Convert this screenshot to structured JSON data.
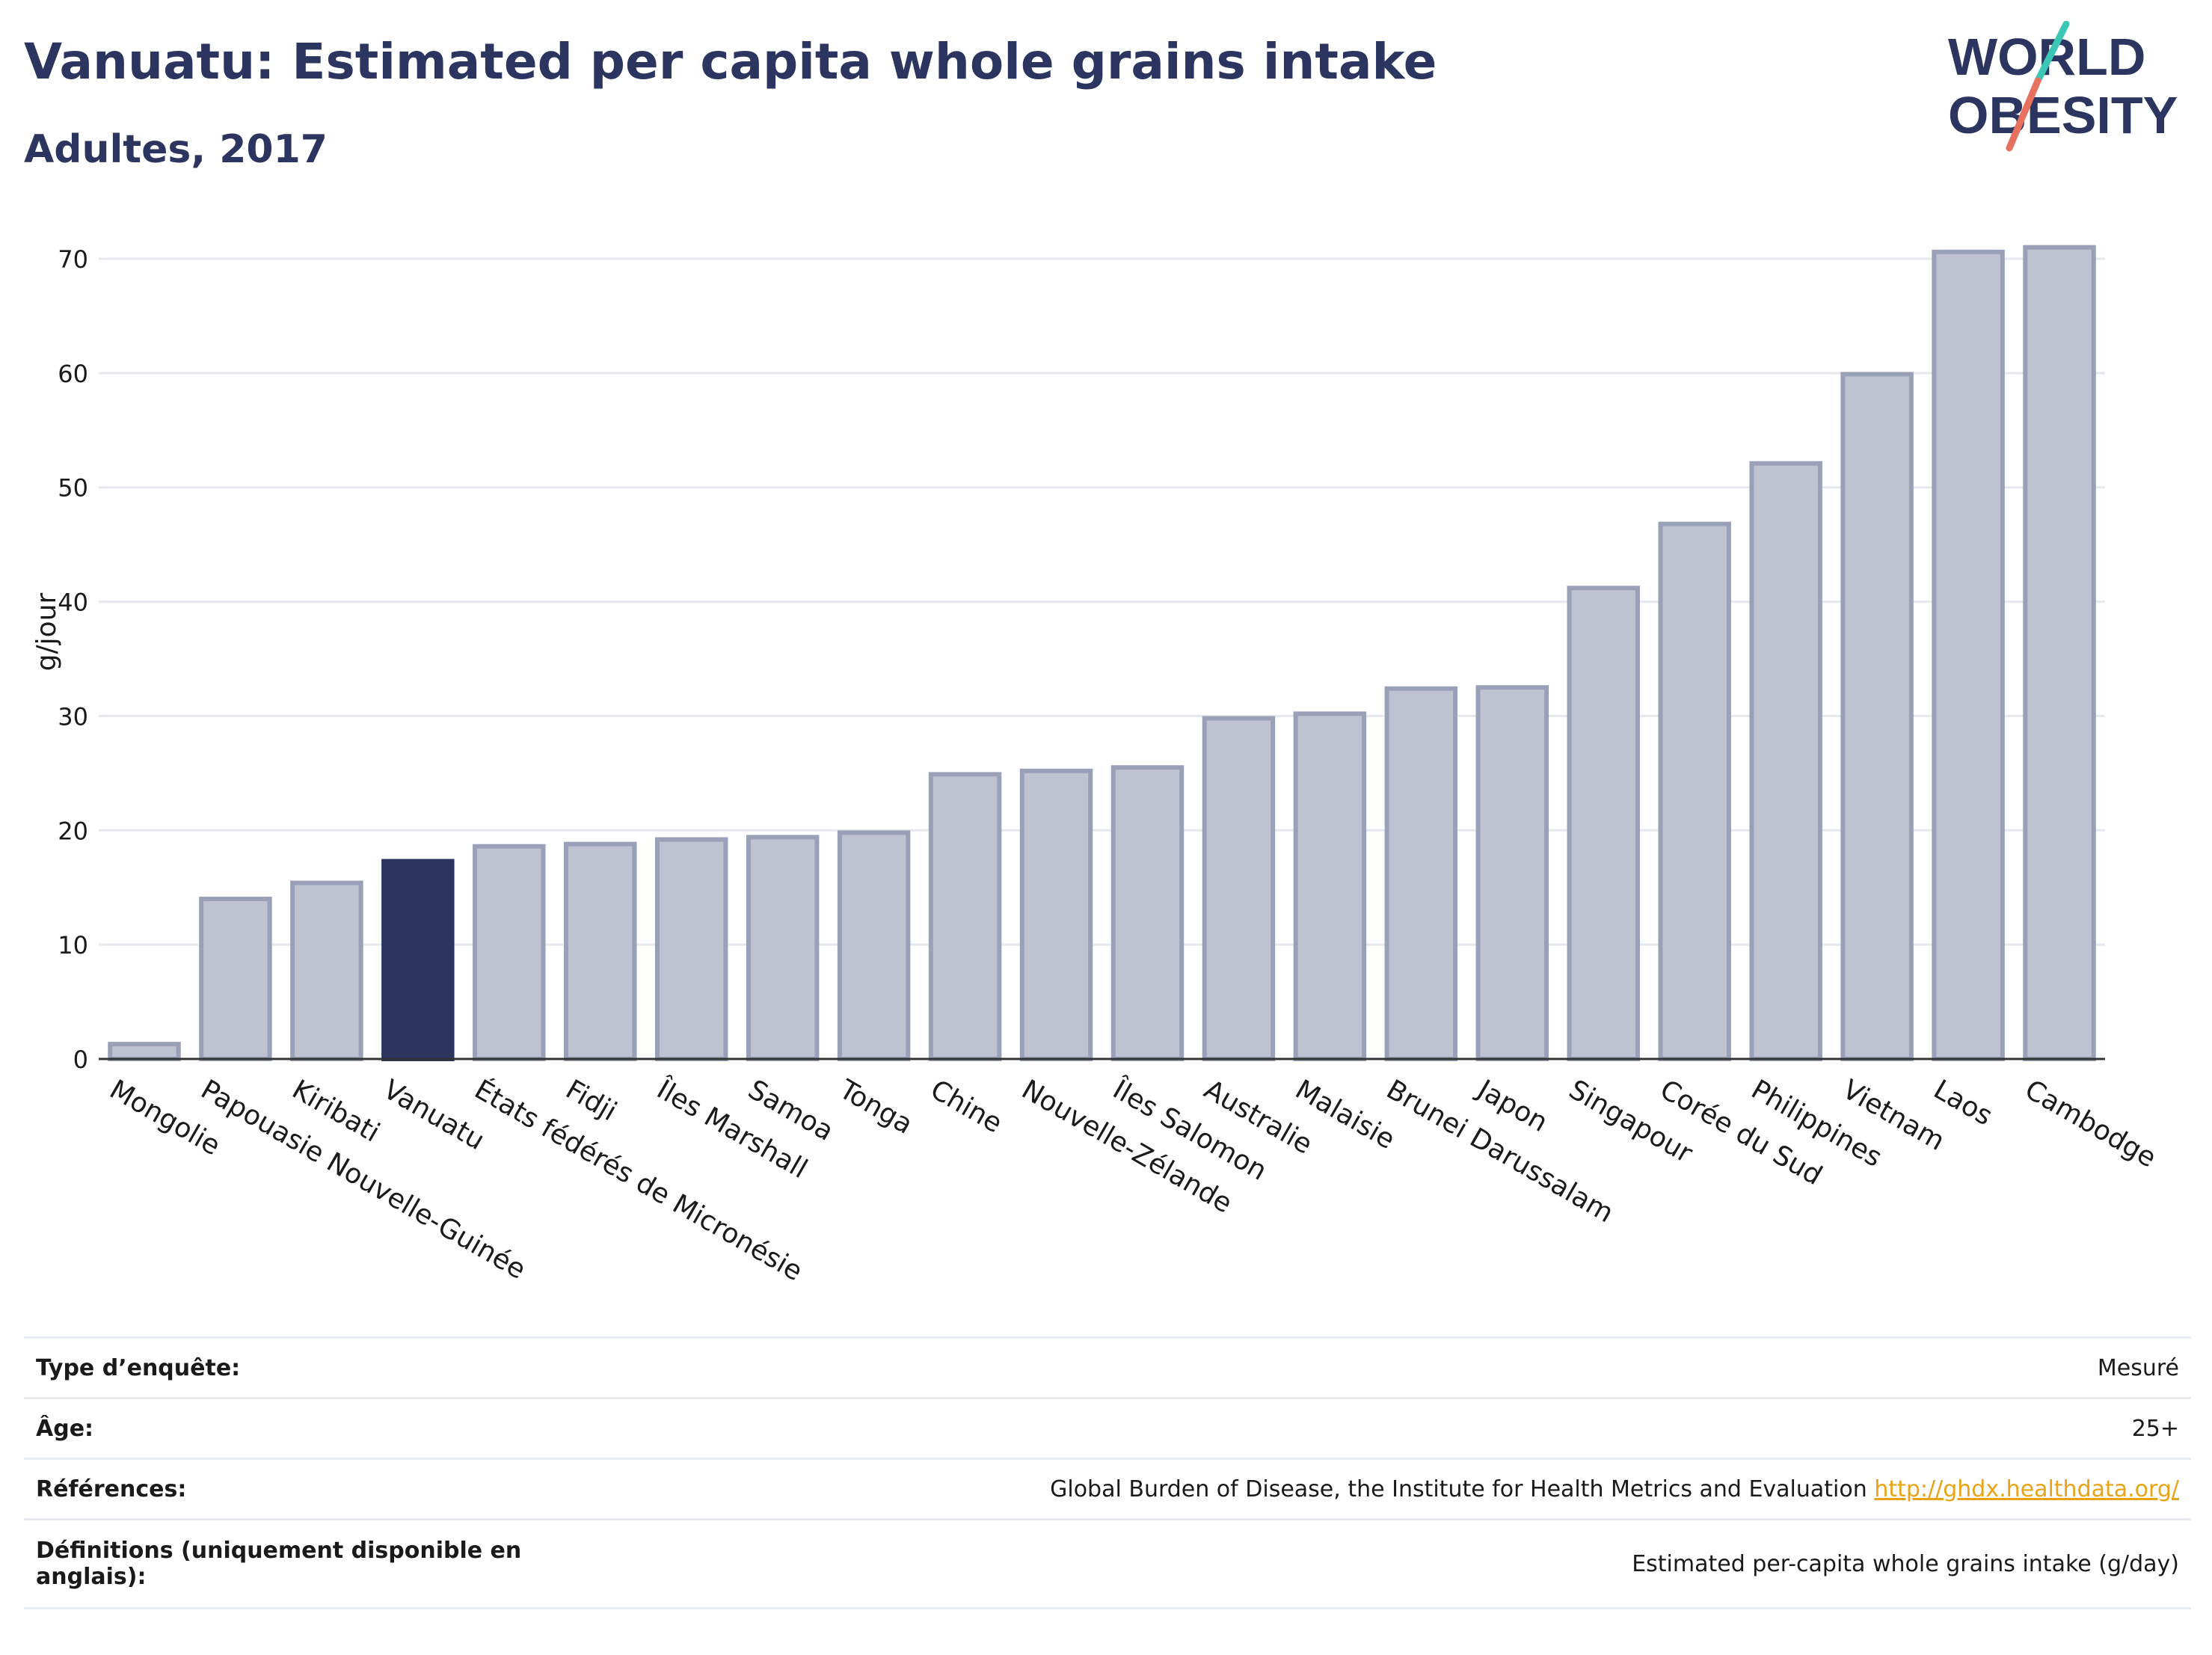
{
  "title": "Vanuatu: Estimated per capita whole grains intake",
  "subtitle": "Adultes, 2017",
  "logo": {
    "line1": "WORLD",
    "line2": "OBESITY"
  },
  "colors": {
    "title": "#2b3560",
    "highlight_bar": "#2b3560",
    "bar_fill": "#bfc3d1",
    "bar_stroke": "#9aa0b8",
    "link": "#e8a317",
    "slash_teal": "#3cc6b6",
    "slash_coral": "#e8705f"
  },
  "chart_data": {
    "type": "bar",
    "categories": [
      "Mongolie",
      "Papouasie Nouvelle-Guinée",
      "Kiribati",
      "Vanuatu",
      "États fédérés de Micronésie",
      "Fidji",
      "Îles Marshall",
      "Samoa",
      "Tonga",
      "Chine",
      "Nouvelle-Zélande",
      "Îles Salomon",
      "Australie",
      "Malaisie",
      "Brunei Darussalam",
      "Japon",
      "Singapour",
      "Corée du Sud",
      "Philippines",
      "Vietnam",
      "Laos",
      "Cambodge"
    ],
    "values": [
      1.3,
      14.0,
      15.4,
      17.3,
      18.6,
      18.8,
      19.2,
      19.4,
      19.8,
      24.9,
      25.2,
      25.5,
      29.8,
      30.2,
      32.4,
      32.5,
      41.2,
      46.8,
      52.1,
      59.9,
      70.6,
      71.0
    ],
    "highlight": "Vanuatu",
    "ylabel": "g/jour",
    "xlabel": "",
    "ylim": [
      0,
      73
    ],
    "yticks": [
      0,
      10,
      20,
      30,
      40,
      50,
      60,
      70
    ],
    "grid": true,
    "legend": false
  },
  "info": {
    "rows": [
      {
        "label": "Type d’enquête:",
        "value": "Mesuré"
      },
      {
        "label": "Âge:",
        "value": "25+"
      },
      {
        "label": "Références:",
        "value": "Global Burden of Disease, the Institute for Health Metrics and Evaluation",
        "link": "http://ghdx.healthdata.org/"
      },
      {
        "label": "Définitions (uniquement disponible en anglais):",
        "value": "Estimated per-capita whole grains intake (g/day)"
      }
    ]
  }
}
